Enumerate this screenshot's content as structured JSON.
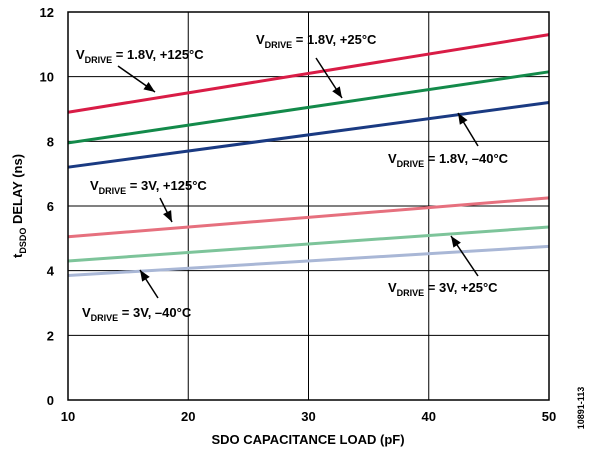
{
  "chart_data": {
    "type": "line",
    "xlabel": "SDO CAPACITANCE LOAD (pF)",
    "ylabel": {
      "main": "t",
      "sub": "DSDO",
      "rest": " DELAY (ns)"
    },
    "xlim": [
      10,
      50
    ],
    "ylim": [
      0,
      12
    ],
    "x_ticks": [
      10,
      20,
      30,
      40,
      50
    ],
    "y_ticks": [
      0,
      2,
      4,
      6,
      8,
      10,
      12
    ],
    "grid": true,
    "figure_id": "10891-113",
    "series": [
      {
        "color": "#d91c46",
        "x": [
          10,
          50
        ],
        "y": [
          8.9,
          11.3
        ]
      },
      {
        "color": "#138a4a",
        "x": [
          10,
          50
        ],
        "y": [
          7.95,
          10.15
        ]
      },
      {
        "color": "#1a3a82",
        "x": [
          10,
          50
        ],
        "y": [
          7.2,
          9.2
        ]
      },
      {
        "color": "#e6707e",
        "x": [
          10,
          50
        ],
        "y": [
          5.05,
          6.25
        ]
      },
      {
        "color": "#7dc49a",
        "x": [
          10,
          50
        ],
        "y": [
          4.3,
          5.35
        ]
      },
      {
        "color": "#a9b7d6",
        "x": [
          10,
          50
        ],
        "y": [
          3.85,
          4.75
        ]
      }
    ],
    "annotations": [
      {
        "pre": "V",
        "sub": "DRIVE",
        "post": " = 1.8V, +125°C",
        "series": 0
      },
      {
        "pre": "V",
        "sub": "DRIVE",
        "post": " = 1.8V, +25°C",
        "series": 1
      },
      {
        "pre": "V",
        "sub": "DRIVE",
        "post": " = 1.8V, –40°C",
        "series": 2
      },
      {
        "pre": "V",
        "sub": "DRIVE",
        "post": " = 3V, +125°C",
        "series": 3
      },
      {
        "pre": "V",
        "sub": "DRIVE",
        "post": " = 3V, +25°C",
        "series": 4
      },
      {
        "pre": "V",
        "sub": "DRIVE",
        "post": " = 3V, –40°C",
        "series": 5
      }
    ]
  }
}
